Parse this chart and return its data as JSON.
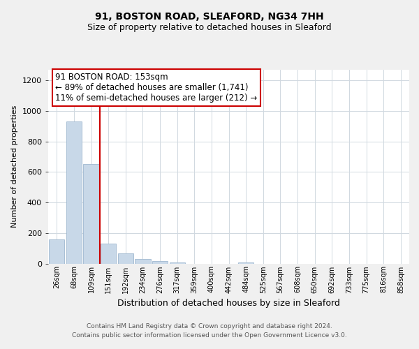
{
  "title": "91, BOSTON ROAD, SLEAFORD, NG34 7HH",
  "subtitle": "Size of property relative to detached houses in Sleaford",
  "xlabel": "Distribution of detached houses by size in Sleaford",
  "ylabel": "Number of detached properties",
  "bin_labels": [
    "26sqm",
    "68sqm",
    "109sqm",
    "151sqm",
    "192sqm",
    "234sqm",
    "276sqm",
    "317sqm",
    "359sqm",
    "400sqm",
    "442sqm",
    "484sqm",
    "525sqm",
    "567sqm",
    "608sqm",
    "650sqm",
    "692sqm",
    "733sqm",
    "775sqm",
    "816sqm",
    "858sqm"
  ],
  "bar_heights": [
    160,
    930,
    650,
    130,
    65,
    30,
    15,
    5,
    0,
    0,
    0,
    5,
    0,
    0,
    0,
    0,
    0,
    0,
    0,
    0,
    0
  ],
  "bar_color": "#c8d8e8",
  "bar_edge_color": "#a0b8d0",
  "annotation_line1": "91 BOSTON ROAD: 153sqm",
  "annotation_line2": "← 89% of detached houses are smaller (1,741)",
  "annotation_line3": "11% of semi-detached houses are larger (212) →",
  "ylim": [
    0,
    1270
  ],
  "yticks": [
    0,
    200,
    400,
    600,
    800,
    1000,
    1200
  ],
  "footer_line1": "Contains HM Land Registry data © Crown copyright and database right 2024.",
  "footer_line2": "Contains public sector information licensed under the Open Government Licence v3.0.",
  "background_color": "#f0f0f0",
  "plot_background": "#ffffff",
  "grid_color": "#d0d8e0",
  "title_fontsize": 10,
  "subtitle_fontsize": 9,
  "annotation_box_color": "#ffffff",
  "annotation_box_edge": "#cc0000",
  "bar_width": 0.9
}
